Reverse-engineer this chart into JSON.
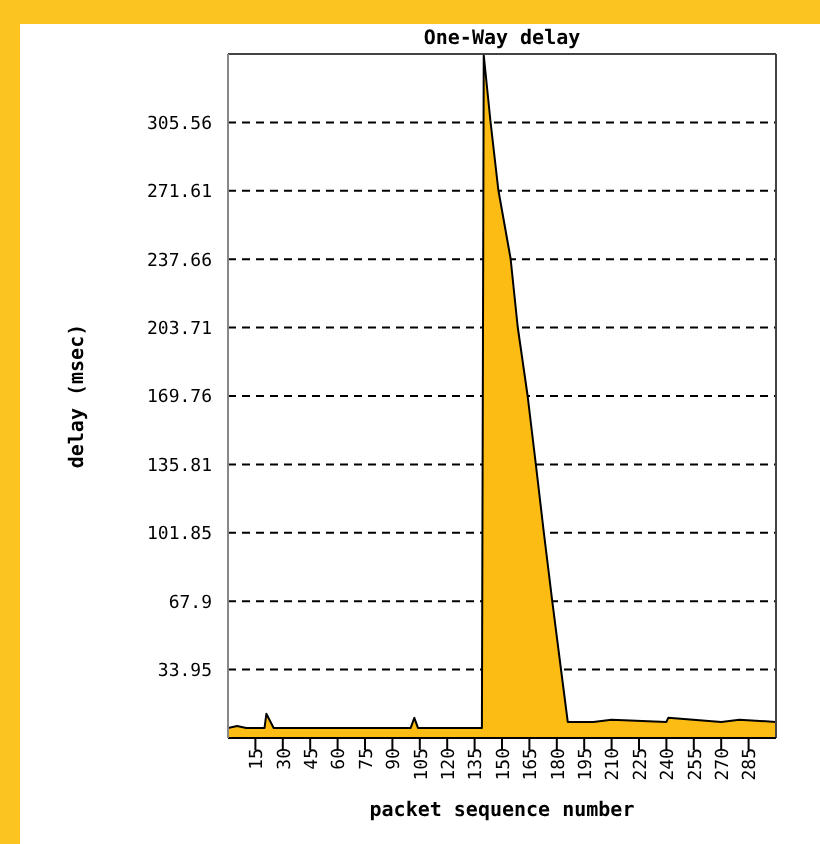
{
  "chart_data": {
    "type": "area",
    "title": "One-Way delay",
    "xlabel": "packet sequence number",
    "ylabel": "delay (msec)",
    "x": [
      0,
      5,
      10,
      15,
      20,
      21,
      25,
      35,
      50,
      75,
      100,
      102,
      104,
      120,
      139,
      140,
      143.7,
      148,
      154.7,
      158.6,
      164,
      168.5,
      172.9,
      177.5,
      182.3,
      186,
      200,
      210,
      240,
      241,
      270,
      280,
      300
    ],
    "series": [
      {
        "color": "#fcbc14",
        "values": [
          5,
          6,
          5,
          5,
          5,
          12,
          5,
          5,
          5,
          5,
          5,
          10,
          5,
          5,
          5,
          339,
          306,
          272,
          238,
          204,
          170,
          136,
          102,
          68,
          34,
          8,
          8,
          9,
          8,
          10,
          8,
          9,
          8
        ]
      }
    ],
    "xlim": [
      0,
      300
    ],
    "xticks": [
      15,
      30,
      45,
      60,
      75,
      90,
      105,
      120,
      135,
      150,
      165,
      180,
      195,
      210,
      225,
      240,
      255,
      270,
      285
    ],
    "ylim": [
      0,
      339.5
    ],
    "yticks": [
      33.95,
      67.9,
      101.85,
      135.81,
      169.76,
      203.71,
      237.66,
      271.61,
      305.56
    ],
    "grid": "y"
  }
}
